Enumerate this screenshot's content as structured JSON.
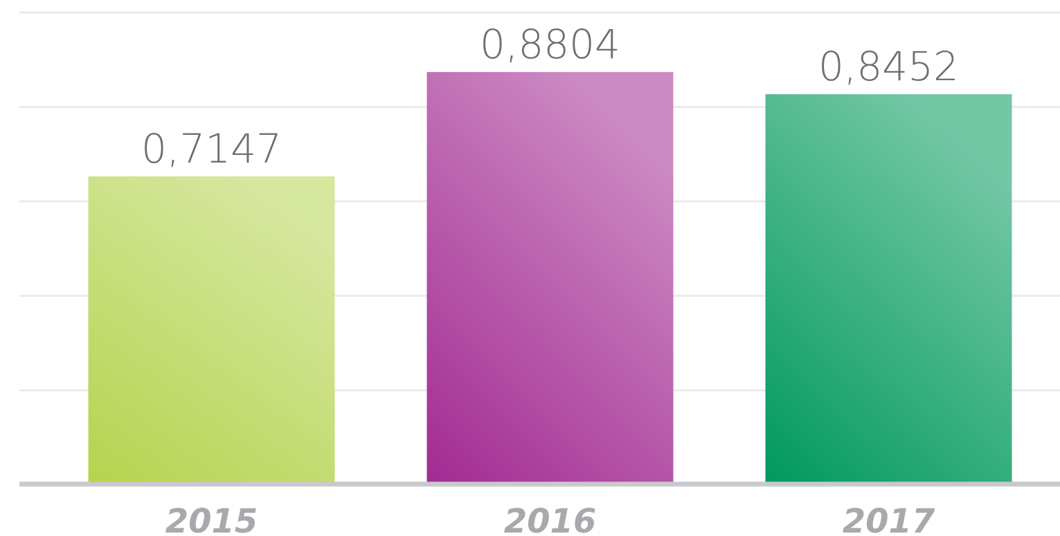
{
  "chart_data": {
    "type": "bar",
    "categories": [
      "2015",
      "2016",
      "2017"
    ],
    "values": [
      0.7147,
      0.8804,
      0.8452
    ],
    "value_labels": [
      "0,7147",
      "0,8804",
      "0,8452"
    ],
    "colors": [
      "#b5d34e",
      "#a32a92",
      "#00995c"
    ],
    "ylim": [
      0.225,
      0.975
    ],
    "yticks": [
      0.375,
      0.525,
      0.675,
      0.825,
      0.975
    ],
    "grid": true
  }
}
